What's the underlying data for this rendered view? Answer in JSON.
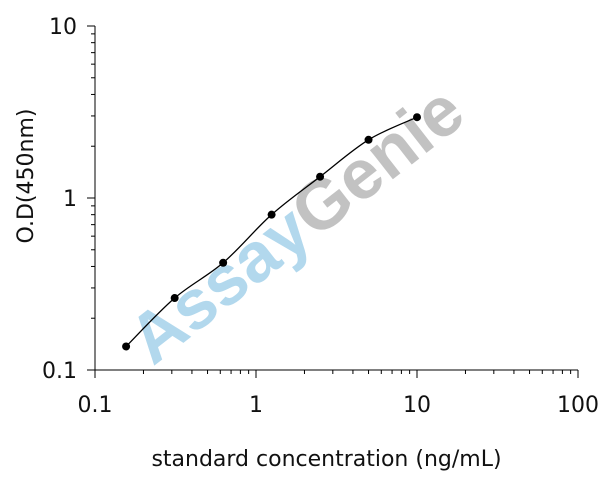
{
  "chart_data": {
    "type": "scatter",
    "x_scale": "log",
    "y_scale": "log",
    "xlim": [
      0.1,
      100
    ],
    "ylim": [
      0.1,
      10
    ],
    "x_ticks": [
      0.1,
      1,
      10,
      100
    ],
    "y_ticks": [
      0.1,
      1,
      10
    ],
    "x_tick_labels": [
      "0.1",
      "1",
      "10",
      "100"
    ],
    "y_tick_labels": [
      "0.1",
      "1",
      "10"
    ],
    "xlabel": "standard concentration (ng/mL)",
    "ylabel": "O.D(450nm)",
    "grid": false,
    "fit_line": true,
    "series": [
      {
        "x": [
          0.156,
          0.3125,
          0.625,
          1.25,
          2.5,
          5,
          10
        ],
        "y": [
          0.137,
          0.262,
          0.42,
          0.8,
          1.33,
          2.18,
          2.95
        ]
      }
    ],
    "colors": {
      "points": "#000000",
      "line": "#000000",
      "watermark_blue": "#9fcfe9",
      "watermark_gray": "#b4b4b4"
    }
  },
  "watermark": {
    "part1": "Assay",
    "part2": "Genie"
  }
}
